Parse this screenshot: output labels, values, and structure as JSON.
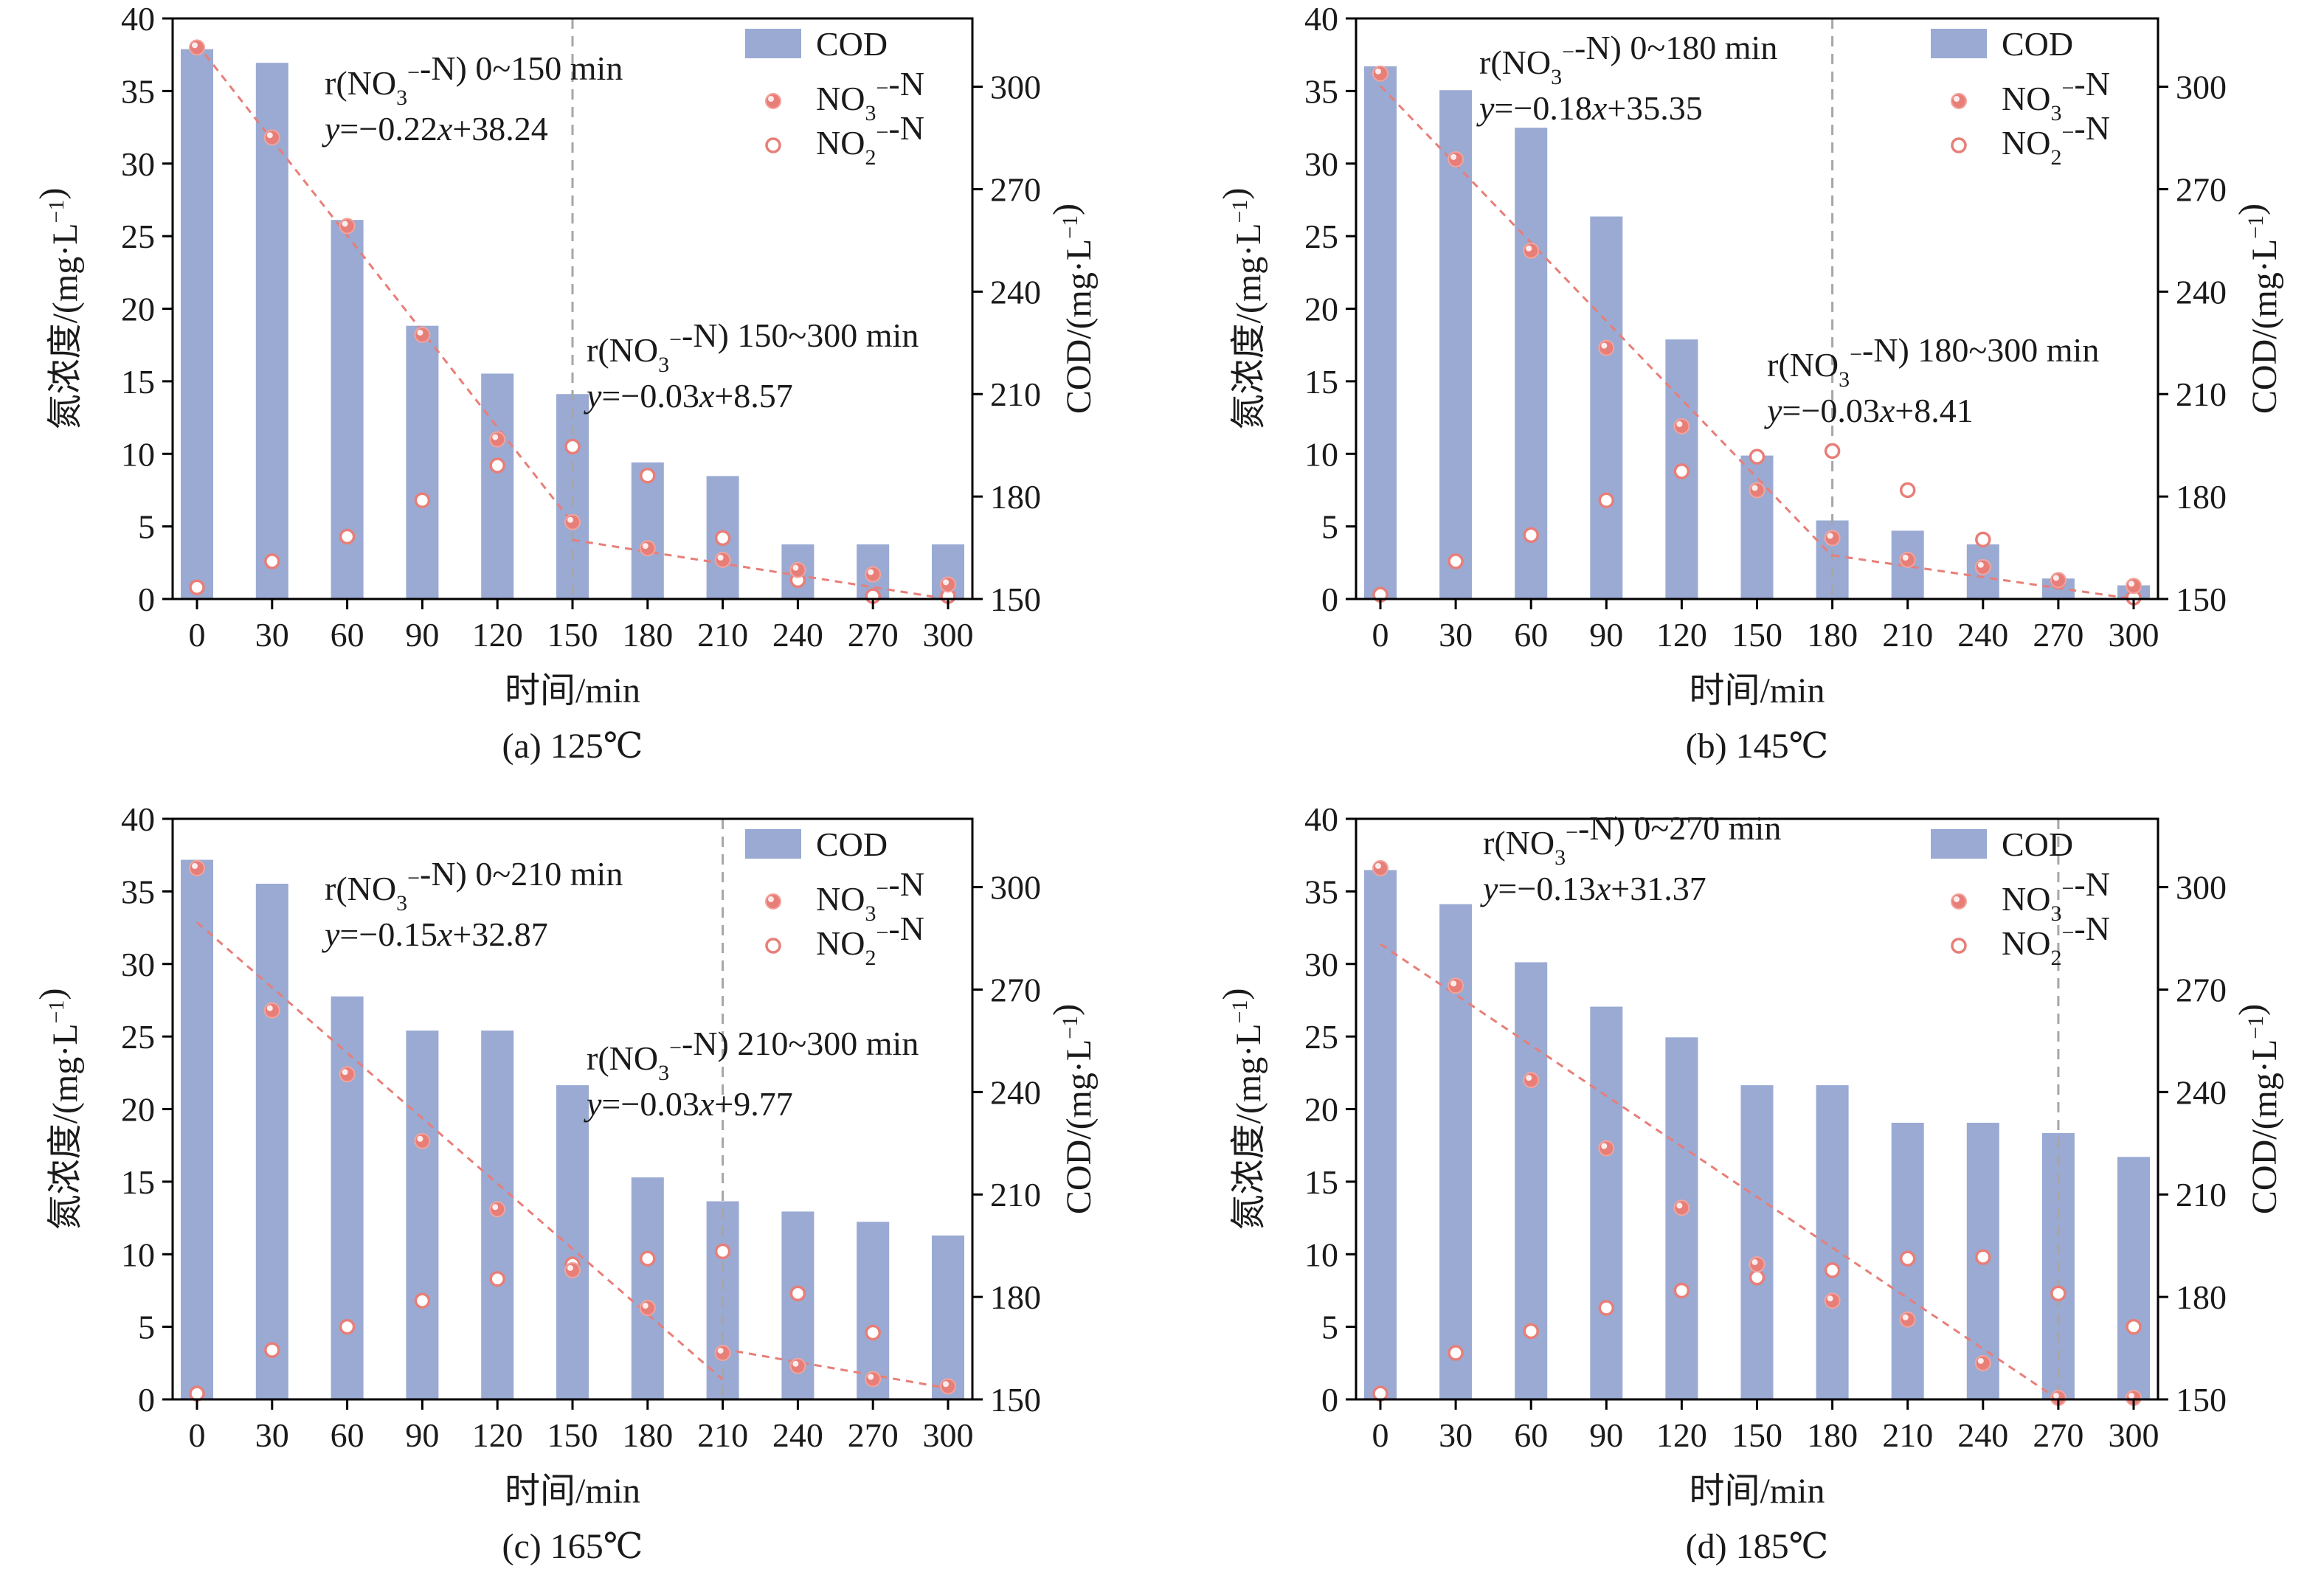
{
  "figure": {
    "colors": {
      "bar": "#9aaad3",
      "marker": "#e87e78",
      "fit": "#e87e78",
      "marker_fill": "#f2a49e",
      "axis": "#000000",
      "divider": "#a6a6a6"
    }
  },
  "chart_data": [
    {
      "type": "bar",
      "caption": "(a) 125℃",
      "xlabel": "时间/min",
      "ylabel_left": "氮浓度/(mg·L⁻¹)",
      "ylabel_right": "COD/(mg·L⁻¹)",
      "categories": [
        0,
        30,
        60,
        90,
        120,
        150,
        180,
        210,
        240,
        270,
        300
      ],
      "ylim_left": [
        0,
        40
      ],
      "yticks_left": [
        0,
        5,
        10,
        15,
        20,
        25,
        30,
        35,
        40
      ],
      "ylim_right": [
        150,
        320
      ],
      "yticks_right": [
        150,
        180,
        210,
        240,
        270,
        300
      ],
      "legend_position": "top-right",
      "legend": [
        "COD",
        "NO₃⁻-N",
        "NO₂⁻-N"
      ],
      "series": [
        {
          "name": "COD",
          "axis": "right",
          "values": [
            311,
            307,
            261,
            230,
            216,
            210,
            190,
            186,
            166,
            166,
            166
          ]
        },
        {
          "name": "NO₃⁻-N",
          "axis": "left",
          "values": [
            38.0,
            31.8,
            25.7,
            18.2,
            11.0,
            5.3,
            3.5,
            2.7,
            2.0,
            1.7,
            1.0
          ]
        },
        {
          "name": "NO₂⁻-N",
          "axis": "left",
          "values": [
            0.8,
            2.6,
            4.3,
            6.8,
            9.2,
            10.5,
            8.5,
            4.2,
            1.3,
            0.2,
            0.2
          ]
        }
      ],
      "divider_x": 150,
      "fits": [
        {
          "label": "r(NO₃⁻-N) 0~150 min",
          "equation": "y=−0.22x+38.24",
          "slope": -0.22,
          "intercept": 38.24,
          "x_range": [
            0,
            150
          ]
        },
        {
          "label": "r(NO₃⁻-N) 150~300 min",
          "equation": "y=−0.03x+8.57",
          "slope": -0.03,
          "intercept": 8.57,
          "x_range": [
            150,
            300
          ]
        }
      ]
    },
    {
      "type": "bar",
      "caption": "(b) 145℃",
      "xlabel": "时间/min",
      "ylabel_left": "氮浓度/(mg·L⁻¹)",
      "ylabel_right": "COD/(mg·L⁻¹)",
      "categories": [
        0,
        30,
        60,
        90,
        120,
        150,
        180,
        210,
        240,
        270,
        300
      ],
      "ylim_left": [
        0,
        40
      ],
      "yticks_left": [
        0,
        5,
        10,
        15,
        20,
        25,
        30,
        35,
        40
      ],
      "ylim_right": [
        150,
        320
      ],
      "yticks_right": [
        150,
        180,
        210,
        240,
        270,
        300
      ],
      "legend_position": "top-right",
      "legend": [
        "COD",
        "NO₃⁻-N",
        "NO₂⁻-N"
      ],
      "series": [
        {
          "name": "COD",
          "axis": "right",
          "values": [
            306,
            299,
            288,
            262,
            226,
            192,
            173,
            170,
            166,
            156,
            154
          ]
        },
        {
          "name": "NO₃⁻-N",
          "axis": "left",
          "values": [
            36.2,
            30.3,
            24.0,
            17.3,
            11.9,
            7.5,
            4.2,
            2.7,
            2.2,
            1.3,
            0.9
          ]
        },
        {
          "name": "NO₂⁻-N",
          "axis": "left",
          "values": [
            0.3,
            2.6,
            4.4,
            6.8,
            8.8,
            9.8,
            10.2,
            7.5,
            4.1,
            1.2,
            0.1
          ]
        }
      ],
      "divider_x": 180,
      "fits": [
        {
          "label": "r(NO₃⁻-N) 0~180 min",
          "equation": "y=−0.18x+35.35",
          "slope": -0.18,
          "intercept": 35.35,
          "x_range": [
            0,
            180
          ]
        },
        {
          "label": "r(NO₃⁻-N) 180~300 min",
          "equation": "y=−0.03x+8.41",
          "slope": -0.03,
          "intercept": 8.41,
          "x_range": [
            180,
            300
          ]
        }
      ]
    },
    {
      "type": "bar",
      "caption": "(c) 165℃",
      "xlabel": "时间/min",
      "ylabel_left": "氮浓度/(mg·L⁻¹)",
      "ylabel_right": "COD/(mg·L⁻¹)",
      "categories": [
        0,
        30,
        60,
        90,
        120,
        150,
        180,
        210,
        240,
        270,
        300
      ],
      "ylim_left": [
        0,
        40
      ],
      "yticks_left": [
        0,
        5,
        10,
        15,
        20,
        25,
        30,
        35,
        40
      ],
      "ylim_right": [
        150,
        320
      ],
      "yticks_right": [
        150,
        180,
        210,
        240,
        270,
        300
      ],
      "legend_position": "top-right",
      "legend": [
        "COD",
        "NO₃⁻-N",
        "NO₂⁻-N"
      ],
      "series": [
        {
          "name": "COD",
          "axis": "right",
          "values": [
            308,
            301,
            268,
            258,
            258,
            242,
            215,
            208,
            205,
            202,
            198
          ]
        },
        {
          "name": "NO₃⁻-N",
          "axis": "left",
          "values": [
            36.6,
            26.8,
            22.4,
            17.8,
            13.1,
            8.9,
            6.3,
            3.2,
            2.3,
            1.4,
            0.9
          ]
        },
        {
          "name": "NO₂⁻-N",
          "axis": "left",
          "values": [
            0.4,
            3.4,
            5.0,
            6.8,
            8.3,
            9.3,
            9.7,
            10.2,
            7.3,
            4.6,
            0.9
          ]
        }
      ],
      "divider_x": 210,
      "fits": [
        {
          "label": "r(NO₃⁻-N) 0~210 min",
          "equation": "y=−0.15x+32.87",
          "slope": -0.15,
          "intercept": 32.87,
          "x_range": [
            0,
            210
          ]
        },
        {
          "label": "r(NO₃⁻-N) 210~300 min",
          "equation": "y=−0.03x+9.77",
          "slope": -0.03,
          "intercept": 9.77,
          "x_range": [
            210,
            300
          ]
        }
      ]
    },
    {
      "type": "bar",
      "caption": "(d) 185℃",
      "xlabel": "时间/min",
      "ylabel_left": "氮浓度/(mg·L⁻¹)",
      "ylabel_right": "COD/(mg·L⁻¹)",
      "categories": [
        0,
        30,
        60,
        90,
        120,
        150,
        180,
        210,
        240,
        270,
        300
      ],
      "ylim_left": [
        0,
        40
      ],
      "yticks_left": [
        0,
        5,
        10,
        15,
        20,
        25,
        30,
        35,
        40
      ],
      "ylim_right": [
        150,
        320
      ],
      "yticks_right": [
        150,
        180,
        210,
        240,
        270,
        300
      ],
      "legend_position": "top-right",
      "legend": [
        "COD",
        "NO₃⁻-N",
        "NO₂⁻-N"
      ],
      "series": [
        {
          "name": "COD",
          "axis": "right",
          "values": [
            305,
            295,
            278,
            265,
            256,
            242,
            242,
            231,
            231,
            228,
            221
          ]
        },
        {
          "name": "NO₃⁻-N",
          "axis": "left",
          "values": [
            36.6,
            28.5,
            22.0,
            17.3,
            13.2,
            9.3,
            6.8,
            5.5,
            2.5,
            0.1,
            0.1
          ]
        },
        {
          "name": "NO₂⁻-N",
          "axis": "left",
          "values": [
            0.4,
            3.2,
            4.7,
            6.3,
            7.5,
            8.4,
            8.9,
            9.7,
            9.8,
            7.3,
            5.0
          ]
        }
      ],
      "divider_x": 270,
      "fits": [
        {
          "label": "r(NO₃⁻-N)  0~270 min",
          "equation": "y=−0.13x+31.37",
          "slope": -0.13,
          "intercept": 31.37,
          "x_range": [
            0,
            270
          ]
        }
      ]
    }
  ]
}
